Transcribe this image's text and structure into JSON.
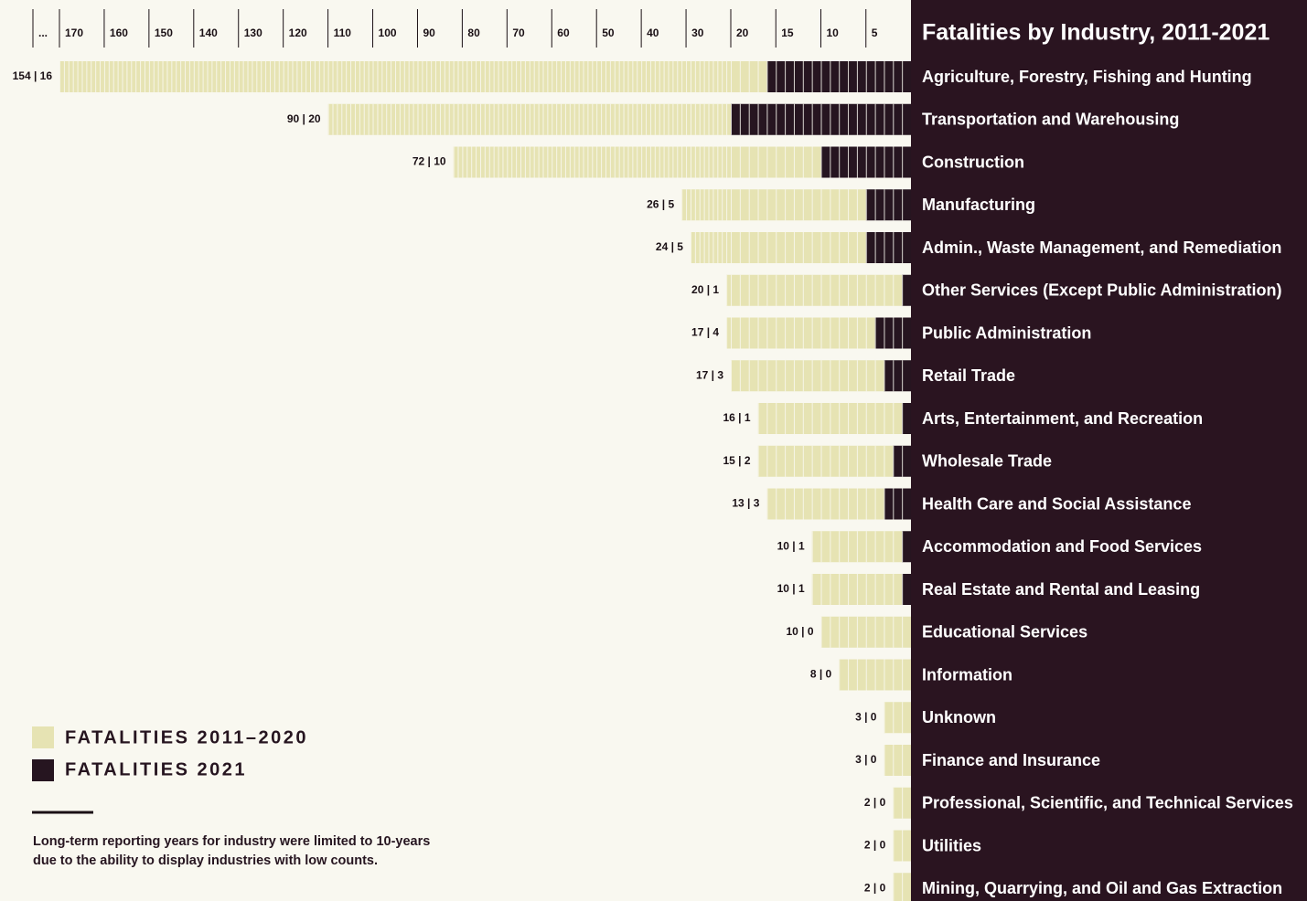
{
  "chart_data": {
    "type": "bar",
    "orientation": "horizontal",
    "stacked": true,
    "title": "Fatalities by Industry, 2011-2021",
    "categories": [
      "Agriculture, Forestry, Fishing and Hunting",
      "Transportation and Warehousing",
      "Construction",
      "Manufacturing",
      "Admin., Waste Management, and Remediation",
      "Other Services (Except Public Administration)",
      "Public Administration",
      "Retail Trade",
      "Arts, Entertainment, and Recreation",
      "Wholesale Trade",
      "Health Care and Social Assistance",
      "Accommodation and Food Services",
      "Real Estate and Rental and Leasing",
      "Educational Services",
      "Information",
      "Unknown",
      "Finance and Insurance",
      "Professional, Scientific, and Technical Services",
      "Utilities",
      "Mining, Quarrying, and Oil and Gas Extraction"
    ],
    "series": [
      {
        "name": "FATALITIES 2011–2020",
        "color": "#e6e3b3",
        "values": [
          154,
          90,
          72,
          26,
          24,
          20,
          17,
          17,
          16,
          15,
          13,
          10,
          10,
          10,
          8,
          3,
          3,
          2,
          2,
          2
        ]
      },
      {
        "name": "FATALITIES 2021",
        "color": "#261520",
        "values": [
          16,
          20,
          10,
          5,
          5,
          1,
          4,
          3,
          1,
          2,
          3,
          1,
          1,
          0,
          0,
          0,
          0,
          0,
          0,
          0
        ]
      }
    ],
    "value_labels": [
      "154 | 16",
      "90 | 20",
      "72 | 10",
      "26 | 5",
      "24 | 5",
      "20 | 1",
      "17 | 4",
      "17 | 3",
      "16 | 1",
      "15 | 2",
      "13 | 3",
      "10 | 1",
      "10 | 1",
      "10 | 0",
      "8 | 0",
      "3 | 0",
      "3 | 0",
      "2 | 0",
      "2 | 0",
      "2 | 0"
    ],
    "xlim": [
      0,
      170
    ],
    "x_scale_break": 20,
    "x_reversed": true,
    "xticks": [
      5,
      10,
      15,
      20,
      30,
      40,
      50,
      60,
      70,
      80,
      90,
      100,
      110,
      120,
      130,
      140,
      150,
      160,
      170
    ],
    "axis_break_label": "...",
    "legend_position": "lower left",
    "note": [
      "Long-term reporting years for industry were limited to 10-years",
      "due to the ability to display industries with low counts."
    ]
  }
}
